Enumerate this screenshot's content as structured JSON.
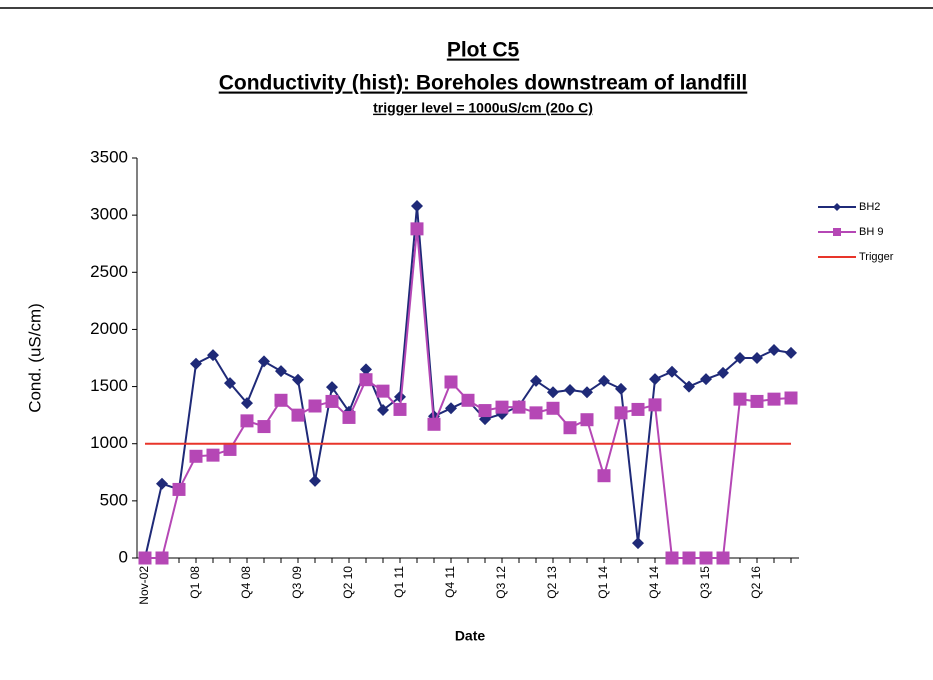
{
  "chart_data": {
    "type": "line",
    "title": "Plot C5",
    "subtitle": "Conductivity (hist): Boreholes downstream of landfill",
    "annotation": "trigger level = 1000uS/cm  (20o C)",
    "x_label": "Date",
    "y_label": "Cond. (uS/cm)",
    "categories": [
      "Nov-02",
      null,
      null,
      "Q1 08",
      null,
      null,
      "Q4 08",
      null,
      null,
      "Q3 09",
      null,
      null,
      "Q2 10",
      null,
      null,
      "Q1 11",
      null,
      null,
      "Q4 11",
      null,
      null,
      "Q3 12",
      null,
      null,
      "Q2 13",
      null,
      null,
      "Q1 14",
      null,
      null,
      "Q4 14",
      null,
      null,
      "Q3 15",
      null,
      null,
      "Q2 16",
      null,
      null
    ],
    "ylim": [
      0,
      3500
    ],
    "yticks": [
      0,
      500,
      1000,
      1500,
      2000,
      2500,
      3000,
      3500
    ],
    "series": [
      {
        "name": "BH2",
        "color": "#1f2a78",
        "marker": "diamond",
        "values": [
          0,
          650,
          600,
          1700,
          1775,
          1530,
          1355,
          1720,
          1635,
          1560,
          675,
          1495,
          1280,
          1650,
          1295,
          1410,
          3080,
          1240,
          1310,
          1380,
          1215,
          1260,
          1330,
          1550,
          1450,
          1470,
          1450,
          1550,
          1480,
          130,
          1565,
          1630,
          1500,
          1565,
          1620,
          1750,
          1750,
          1820,
          1795
        ]
      },
      {
        "name": "BH 9",
        "color": "#b547b5",
        "marker": "square",
        "values": [
          0,
          0,
          600,
          890,
          900,
          950,
          1200,
          1150,
          1380,
          1250,
          1330,
          1370,
          1230,
          1560,
          1460,
          1300,
          2880,
          1170,
          1540,
          1380,
          1290,
          1320,
          1320,
          1270,
          1310,
          1140,
          1210,
          720,
          1270,
          1300,
          1340,
          0,
          0,
          0,
          0,
          1390,
          1370,
          1390,
          1400
        ]
      },
      {
        "name": "Trigger",
        "color": "#e8352a",
        "marker": "none",
        "values": [
          1000,
          1000,
          1000,
          1000,
          1000,
          1000,
          1000,
          1000,
          1000,
          1000,
          1000,
          1000,
          1000,
          1000,
          1000,
          1000,
          1000,
          1000,
          1000,
          1000,
          1000,
          1000,
          1000,
          1000,
          1000,
          1000,
          1000,
          1000,
          1000,
          1000,
          1000,
          1000,
          1000,
          1000,
          1000,
          1000,
          1000,
          1000,
          1000
        ]
      }
    ]
  }
}
